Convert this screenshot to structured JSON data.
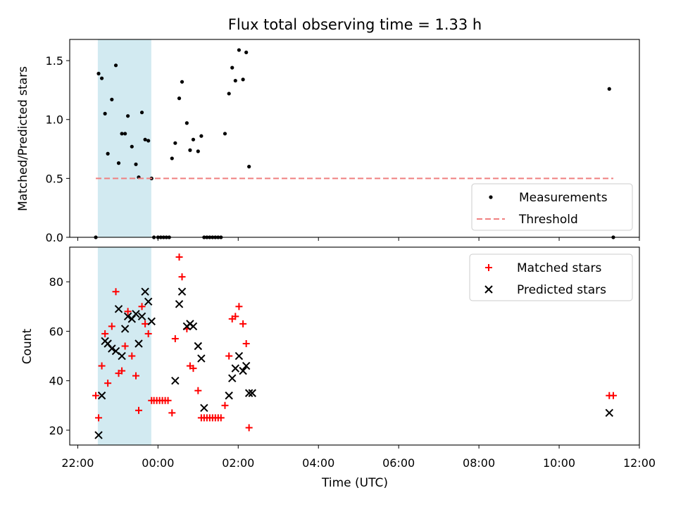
{
  "chart_data": [
    {
      "type": "scatter",
      "title": "Flux total observing time = 1.33 h",
      "xlabel": "",
      "ylabel": "Matched/Predicted stars",
      "ylim": [
        0,
        1.68
      ],
      "yticks": [
        "0.0",
        "0.5",
        "1.0",
        "1.5"
      ],
      "ytick_values": [
        0,
        0.5,
        1.0,
        1.5
      ],
      "x_unit": "hours since 22:00 UTC",
      "xlim": [
        -0.2,
        14.0
      ],
      "shaded_interval": [
        "22:30",
        "23:50"
      ],
      "shade_color": "#add8e6",
      "legend": "lower-right",
      "series": [
        {
          "name": "Measurements",
          "marker": "dot",
          "color": "#000000",
          "points": [
            [
              0.45,
              0
            ],
            [
              0.52,
              1.39
            ],
            [
              0.6,
              1.35
            ],
            [
              0.68,
              1.05
            ],
            [
              0.75,
              0.71
            ],
            [
              0.85,
              1.17
            ],
            [
              0.95,
              1.46
            ],
            [
              1.02,
              0.63
            ],
            [
              1.1,
              0.88
            ],
            [
              1.18,
              0.88
            ],
            [
              1.25,
              1.03
            ],
            [
              1.35,
              0.77
            ],
            [
              1.45,
              0.62
            ],
            [
              1.52,
              0.51
            ],
            [
              1.6,
              1.06
            ],
            [
              1.68,
              0.83
            ],
            [
              1.76,
              0.82
            ],
            [
              1.84,
              0.5
            ],
            [
              1.9,
              0
            ],
            [
              2.0,
              0
            ],
            [
              2.07,
              0
            ],
            [
              2.14,
              0
            ],
            [
              2.21,
              0
            ],
            [
              2.28,
              0
            ],
            [
              2.35,
              0.67
            ],
            [
              2.43,
              0.8
            ],
            [
              2.53,
              1.18
            ],
            [
              2.6,
              1.32
            ],
            [
              2.72,
              0.97
            ],
            [
              2.8,
              0.74
            ],
            [
              2.88,
              0.83
            ],
            [
              3.0,
              0.73
            ],
            [
              3.08,
              0.86
            ],
            [
              3.15,
              0
            ],
            [
              3.22,
              0
            ],
            [
              3.29,
              0
            ],
            [
              3.36,
              0
            ],
            [
              3.43,
              0
            ],
            [
              3.5,
              0
            ],
            [
              3.57,
              0
            ],
            [
              3.67,
              0.88
            ],
            [
              3.77,
              1.22
            ],
            [
              3.85,
              1.44
            ],
            [
              3.93,
              1.33
            ],
            [
              4.02,
              1.59
            ],
            [
              4.12,
              1.34
            ],
            [
              4.2,
              1.57
            ],
            [
              4.27,
              0.6
            ],
            [
              13.25,
              1.26
            ],
            [
              13.35,
              0
            ]
          ]
        },
        {
          "name": "Threshold",
          "marker": "dashed-line",
          "color": "#f08080",
          "points": [
            [
              0.45,
              0.5
            ],
            [
              13.35,
              0.5
            ]
          ]
        }
      ]
    },
    {
      "type": "scatter",
      "title": "",
      "xlabel": "Time (UTC)",
      "ylabel": "Count",
      "ylim": [
        14,
        94
      ],
      "yticks": [
        "20",
        "40",
        "60",
        "80"
      ],
      "ytick_values": [
        20,
        40,
        60,
        80
      ],
      "x_unit": "hours since 22:00 UTC",
      "xlim": [
        -0.2,
        14.0
      ],
      "xticks": [
        "22:00",
        "00:00",
        "02:00",
        "04:00",
        "06:00",
        "08:00",
        "10:00",
        "12:00"
      ],
      "xtick_values": [
        0,
        2,
        4,
        6,
        8,
        10,
        12,
        14
      ],
      "shaded_interval": [
        "22:30",
        "23:50"
      ],
      "shade_color": "#add8e6",
      "legend": "top-right",
      "series": [
        {
          "name": "Matched stars",
          "marker": "plus",
          "color": "#ff0000",
          "points": [
            [
              0.45,
              34
            ],
            [
              0.52,
              25
            ],
            [
              0.6,
              46
            ],
            [
              0.68,
              59
            ],
            [
              0.75,
              39
            ],
            [
              0.85,
              62
            ],
            [
              0.95,
              76
            ],
            [
              1.02,
              43
            ],
            [
              1.1,
              44
            ],
            [
              1.18,
              54
            ],
            [
              1.25,
              68
            ],
            [
              1.35,
              50
            ],
            [
              1.45,
              42
            ],
            [
              1.52,
              28
            ],
            [
              1.6,
              70
            ],
            [
              1.68,
              63
            ],
            [
              1.76,
              59
            ],
            [
              1.84,
              32
            ],
            [
              1.9,
              32
            ],
            [
              1.97,
              32
            ],
            [
              2.04,
              32
            ],
            [
              2.11,
              32
            ],
            [
              2.18,
              32
            ],
            [
              2.25,
              32
            ],
            [
              2.35,
              27
            ],
            [
              2.43,
              57
            ],
            [
              2.53,
              90
            ],
            [
              2.6,
              82
            ],
            [
              2.72,
              61
            ],
            [
              2.8,
              46
            ],
            [
              2.88,
              45
            ],
            [
              3.0,
              36
            ],
            [
              3.08,
              25
            ],
            [
              3.15,
              25
            ],
            [
              3.22,
              25
            ],
            [
              3.29,
              25
            ],
            [
              3.36,
              25
            ],
            [
              3.43,
              25
            ],
            [
              3.5,
              25
            ],
            [
              3.57,
              25
            ],
            [
              3.67,
              30
            ],
            [
              3.77,
              50
            ],
            [
              3.85,
              65
            ],
            [
              3.93,
              66
            ],
            [
              4.02,
              70
            ],
            [
              4.12,
              63
            ],
            [
              4.2,
              55
            ],
            [
              4.27,
              21
            ],
            [
              13.25,
              34
            ],
            [
              13.35,
              34
            ]
          ]
        },
        {
          "name": "Predicted stars",
          "marker": "x",
          "color": "#000000",
          "points": [
            [
              0.52,
              18
            ],
            [
              0.6,
              34
            ],
            [
              0.68,
              56
            ],
            [
              0.75,
              55
            ],
            [
              0.85,
              53
            ],
            [
              0.95,
              52
            ],
            [
              1.02,
              69
            ],
            [
              1.1,
              50
            ],
            [
              1.18,
              61
            ],
            [
              1.25,
              66
            ],
            [
              1.35,
              65
            ],
            [
              1.45,
              67
            ],
            [
              1.52,
              55
            ],
            [
              1.6,
              66
            ],
            [
              1.68,
              76
            ],
            [
              1.76,
              72
            ],
            [
              1.84,
              64
            ],
            [
              2.43,
              40
            ],
            [
              2.53,
              71
            ],
            [
              2.6,
              76
            ],
            [
              2.72,
              62
            ],
            [
              2.8,
              63
            ],
            [
              2.88,
              62
            ],
            [
              3.0,
              54
            ],
            [
              3.08,
              49
            ],
            [
              3.15,
              29
            ],
            [
              3.77,
              34
            ],
            [
              3.85,
              41
            ],
            [
              3.93,
              45
            ],
            [
              4.02,
              50
            ],
            [
              4.12,
              44
            ],
            [
              4.2,
              46
            ],
            [
              4.27,
              35
            ],
            [
              4.35,
              35
            ],
            [
              13.25,
              27
            ]
          ]
        }
      ]
    }
  ]
}
